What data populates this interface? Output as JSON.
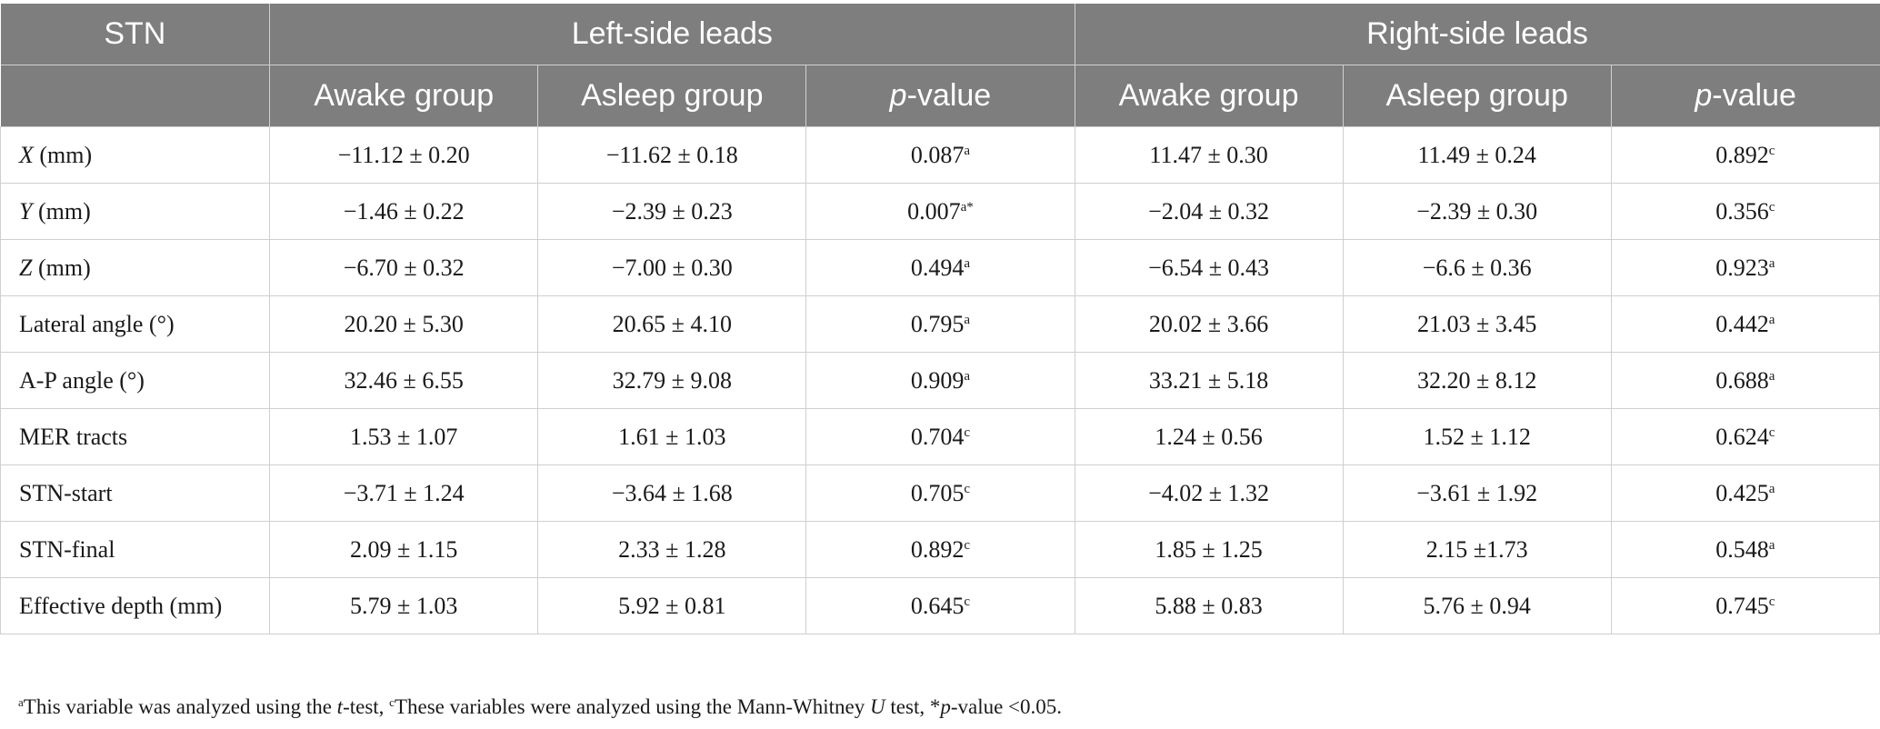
{
  "header": {
    "stn": "STN",
    "left_group": "Left-side leads",
    "right_group": "Right-side leads",
    "awake": "Awake group",
    "asleep": "Asleep group",
    "p_italic": "p",
    "p_rest": "-value"
  },
  "rows": [
    {
      "label_it": "X",
      "label_rest": " (mm)",
      "l_awake": "−11.12 ± 0.20",
      "l_asleep": "−11.62 ± 0.18",
      "l_p": "0.087",
      "l_p_sup": "a",
      "r_awake": "11.47 ± 0.30",
      "r_asleep": "11.49 ± 0.24",
      "r_p": "0.892",
      "r_p_sup": "c"
    },
    {
      "label_it": "Y",
      "label_rest": " (mm)",
      "l_awake": "−1.46 ± 0.22",
      "l_asleep": "−2.39 ± 0.23",
      "l_p": "0.007",
      "l_p_sup": "a*",
      "r_awake": "−2.04 ± 0.32",
      "r_asleep": "−2.39 ± 0.30",
      "r_p": "0.356",
      "r_p_sup": "c"
    },
    {
      "label_it": "Z",
      "label_rest": " (mm)",
      "l_awake": "−6.70 ± 0.32",
      "l_asleep": "−7.00 ± 0.30",
      "l_p": "0.494",
      "l_p_sup": "a",
      "r_awake": "−6.54 ± 0.43",
      "r_asleep": "−6.6 ± 0.36",
      "r_p": "0.923",
      "r_p_sup": "a"
    },
    {
      "label_it": "",
      "label_rest": "Lateral angle (°)",
      "l_awake": "20.20 ± 5.30",
      "l_asleep": "20.65 ± 4.10",
      "l_p": "0.795",
      "l_p_sup": "a",
      "r_awake": "20.02 ± 3.66",
      "r_asleep": "21.03 ± 3.45",
      "r_p": "0.442",
      "r_p_sup": "a"
    },
    {
      "label_it": "",
      "label_rest": "A-P angle (°)",
      "l_awake": "32.46 ± 6.55",
      "l_asleep": "32.79 ± 9.08",
      "l_p": "0.909",
      "l_p_sup": "a",
      "r_awake": "33.21 ± 5.18",
      "r_asleep": "32.20 ± 8.12",
      "r_p": "0.688",
      "r_p_sup": "a"
    },
    {
      "label_it": "",
      "label_rest": "MER tracts",
      "l_awake": "1.53 ±  1.07",
      "l_asleep": "1.61 ± 1.03",
      "l_p": "0.704",
      "l_p_sup": "c",
      "r_awake": "1.24 ± 0.56",
      "r_asleep": "1.52 ± 1.12",
      "r_p": "0.624",
      "r_p_sup": "c"
    },
    {
      "label_it": "",
      "label_rest": "STN-start",
      "l_awake": "−3.71 ± 1.24",
      "l_asleep": "−3.64 ± 1.68",
      "l_p": "0.705",
      "l_p_sup": "c",
      "r_awake": "−4.02 ± 1.32",
      "r_asleep": "−3.61 ± 1.92",
      "r_p": "0.425",
      "r_p_sup": "a"
    },
    {
      "label_it": "",
      "label_rest": "STN-final",
      "l_awake": "2.09 ± 1.15",
      "l_asleep": "2.33 ± 1.28",
      "l_p": "0.892",
      "l_p_sup": "c",
      "r_awake": "1.85 ± 1.25",
      "r_asleep": "2.15 ±1.73",
      "r_p": "0.548",
      "r_p_sup": "a"
    },
    {
      "label_it": "",
      "label_rest": "Effective depth (mm)",
      "l_awake": "5.79 ± 1.03",
      "l_asleep": "5.92 ± 0.81",
      "l_p": "0.645",
      "l_p_sup": "c",
      "r_awake": "5.88 ± 0.83",
      "r_asleep": "5.76 ± 0.94",
      "r_p": "0.745",
      "r_p_sup": "c"
    }
  ],
  "footnote": {
    "sup_a": "a",
    "part1": "This variable was analyzed using the ",
    "t_italic": "t",
    "part2": "-test, ",
    "sup_c": "c",
    "part3": "These variables were analyzed using the Mann-Whitney ",
    "u_italic": "U",
    "part4": " test, *",
    "p_italic": "p",
    "part5": "-value <0.05."
  }
}
